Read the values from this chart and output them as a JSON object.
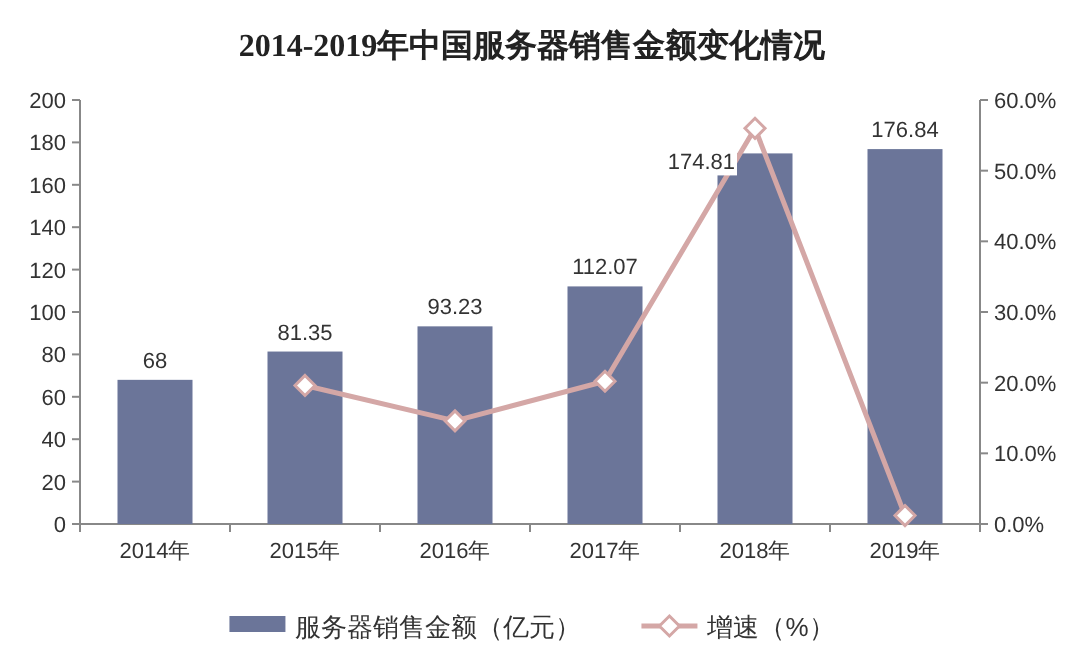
{
  "chart_data": {
    "type": "bar",
    "title": "2014-2019年中国服务器销售金额变化情况",
    "categories": [
      "2014年",
      "2015年",
      "2016年",
      "2017年",
      "2018年",
      "2019年"
    ],
    "series": [
      {
        "name": "服务器销售金额（亿元）",
        "color": "#6b7599",
        "values": [
          68,
          81.35,
          93.23,
          112.07,
          174.81,
          176.84
        ],
        "value_labels": [
          "68",
          "81.35",
          "93.23",
          "112.07",
          "174.81",
          "176.84"
        ]
      },
      {
        "name": "增速（%）",
        "type": "line",
        "axis": "y2",
        "color": "#d4a7a6",
        "marker": "diamond",
        "values": [
          null,
          19.6,
          14.6,
          20.2,
          56.0,
          1.2
        ]
      }
    ],
    "ylim": [
      0,
      200
    ],
    "yticks": [
      0,
      20,
      40,
      60,
      80,
      100,
      120,
      140,
      160,
      180,
      200
    ],
    "y2lim": [
      0,
      60
    ],
    "y2ticks": [
      {
        "value": 0,
        "label": "0.0%"
      },
      {
        "value": 10,
        "label": "10.0%"
      },
      {
        "value": 20,
        "label": "20.0%"
      },
      {
        "value": 30,
        "label": "30.0%"
      },
      {
        "value": 40,
        "label": "40.0%"
      },
      {
        "value": 50,
        "label": "50.0%"
      },
      {
        "value": 60,
        "label": "60.0%"
      }
    ],
    "grid": false,
    "legend": "bottom"
  }
}
